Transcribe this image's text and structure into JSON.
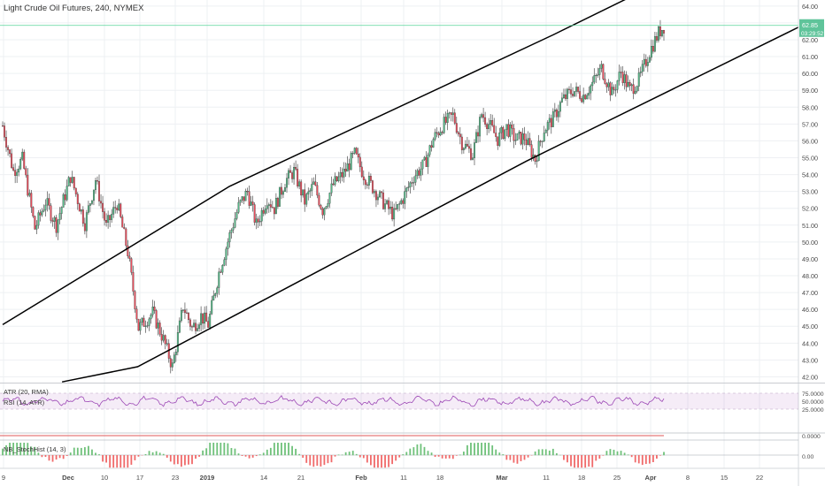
{
  "chart_data": {
    "type": "candlestick",
    "title": "Light Crude Oil Futures, 240, NYMEX",
    "last_price": "62.85",
    "countdown": "03:29:52",
    "y_ticks": [
      "64.00",
      "63.00",
      "62.00",
      "61.00",
      "60.00",
      "59.00",
      "58.00",
      "57.00",
      "56.00",
      "55.00",
      "54.00",
      "53.00",
      "52.00",
      "51.00",
      "50.00",
      "49.00",
      "48.00",
      "47.00",
      "46.00",
      "45.00",
      "44.00",
      "43.00",
      "42.00"
    ],
    "ylim": [
      41.5,
      64.2
    ],
    "x_ticks": [
      "9",
      "Dec",
      "10",
      "17",
      "23",
      "2019",
      "14",
      "21",
      "Feb",
      "11",
      "18",
      "Mar",
      "11",
      "18",
      "25",
      "Apr",
      "8",
      "15",
      "22"
    ],
    "channel": {
      "upper": [
        {
          "date": "2018-11-29",
          "price": 45.1
        },
        {
          "date": "2019-01-10",
          "price": 53.3
        },
        {
          "date": "2019-03-11",
          "price": 62.3
        },
        {
          "date": "2019-04-01",
          "price": 65.6
        }
      ],
      "lower": [
        {
          "date": "2018-12-10",
          "price": 41.7
        },
        {
          "date": "2018-12-24",
          "price": 42.6
        },
        {
          "date": "2019-03-06",
          "price": 54.8
        },
        {
          "date": "2019-04-27",
          "price": 63.0
        }
      ]
    },
    "price_path": [
      [
        0,
        56.9
      ],
      [
        6,
        54.2
      ],
      [
        11,
        54.9
      ],
      [
        18,
        50.8
      ],
      [
        24,
        52.4
      ],
      [
        30,
        51.0
      ],
      [
        38,
        53.9
      ],
      [
        46,
        51.1
      ],
      [
        52,
        53.7
      ],
      [
        58,
        50.9
      ],
      [
        64,
        52.3
      ],
      [
        70,
        49.4
      ],
      [
        76,
        44.9
      ],
      [
        84,
        45.8
      ],
      [
        90,
        44.2
      ],
      [
        95,
        42.6
      ],
      [
        101,
        46.2
      ],
      [
        106,
        44.9
      ],
      [
        111,
        45.6
      ],
      [
        115,
        45.1
      ],
      [
        121,
        48.2
      ],
      [
        127,
        50.4
      ],
      [
        132,
        52.1
      ],
      [
        137,
        53.0
      ],
      [
        142,
        51.0
      ],
      [
        148,
        52.6
      ],
      [
        152,
        52.0
      ],
      [
        158,
        53.6
      ],
      [
        163,
        54.2
      ],
      [
        169,
        52.4
      ],
      [
        174,
        53.4
      ],
      [
        179,
        51.9
      ],
      [
        185,
        53.4
      ],
      [
        191,
        54.1
      ],
      [
        197,
        55.2
      ],
      [
        202,
        54.0
      ],
      [
        208,
        53.1
      ],
      [
        214,
        52.2
      ],
      [
        219,
        51.6
      ],
      [
        224,
        52.6
      ],
      [
        230,
        53.9
      ],
      [
        236,
        54.6
      ],
      [
        241,
        56.1
      ],
      [
        246,
        56.9
      ],
      [
        252,
        57.5
      ],
      [
        257,
        55.9
      ],
      [
        263,
        55.2
      ],
      [
        268,
        57.6
      ],
      [
        272,
        57.0
      ],
      [
        277,
        56.1
      ],
      [
        282,
        56.8
      ],
      [
        287,
        56.1
      ],
      [
        292,
        56.2
      ],
      [
        298,
        54.9
      ],
      [
        303,
        56.7
      ],
      [
        308,
        57.3
      ],
      [
        313,
        58.4
      ],
      [
        319,
        59.0
      ],
      [
        325,
        58.7
      ],
      [
        330,
        59.4
      ],
      [
        335,
        60.3
      ],
      [
        341,
        58.8
      ],
      [
        346,
        60.1
      ],
      [
        351,
        59.0
      ],
      [
        356,
        59.6
      ],
      [
        362,
        61.3
      ],
      [
        367,
        62.4
      ],
      [
        370,
        62.8
      ]
    ],
    "indicators": {
      "atr_rsi": {
        "label_atr": "ATR (20, RMA)",
        "label_rsi": "RSI (14, ATR)",
        "ticks": [
          "75.0000",
          "50.0000",
          "25.0000"
        ],
        "range": [
          0,
          100
        ],
        "bands": [
          25,
          75
        ]
      },
      "stoch_hist": {
        "label": "NB_StochHist (14, 3)",
        "ticks": [
          "0.0000",
          "0.00"
        ]
      }
    }
  },
  "colors": {
    "bull": "#53b987",
    "bear": "#eb4d5c",
    "wick": "#333333",
    "channel": "#000000",
    "grid": "#eef0f3",
    "price_line": "#57d39a",
    "rsi_line": "#9c47b5",
    "rsi_band": "rgba(156,71,181,0.10)",
    "hist_pos": "#6fc17a",
    "hist_neg": "#f06a6a",
    "axis_text": "#4a4a4a",
    "last_bg": "#5fc49a"
  }
}
